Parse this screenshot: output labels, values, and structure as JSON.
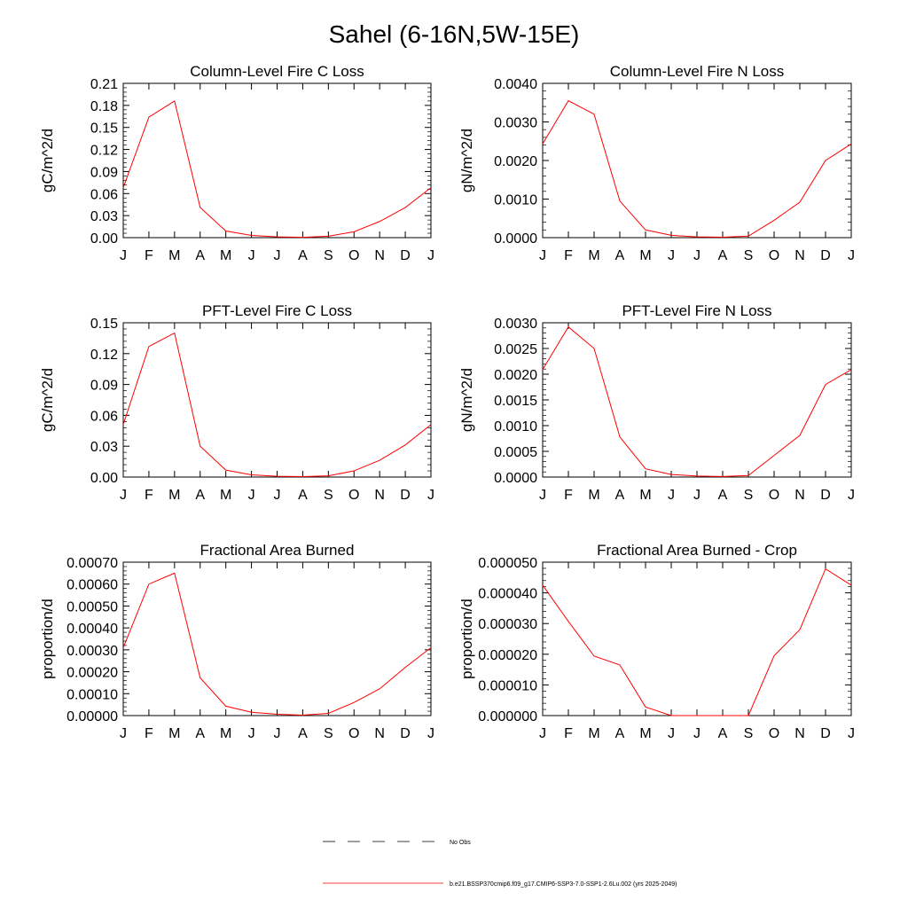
{
  "page_title": "Sahel (6-16N,5W-15E)",
  "legend": [
    {
      "label": "No Obs",
      "color": "#000000",
      "dash": "dashed"
    },
    {
      "label": "b.e21.BSSP370cmip6.f09_g17.CMIP6-SSP3-7.0-SSP1-2.6Lu.002 (yrs 2025-2049)",
      "color": "#ff0000",
      "dash": "solid"
    }
  ],
  "chart_data": [
    {
      "type": "line",
      "title": "Column-Level Fire C Loss",
      "ylabel": "gC/m^2/d",
      "categories": [
        "J",
        "F",
        "M",
        "A",
        "M",
        "J",
        "J",
        "A",
        "S",
        "O",
        "N",
        "D",
        "J"
      ],
      "ylim": [
        0,
        0.21
      ],
      "yticks": [
        "0.00",
        "0.03",
        "0.06",
        "0.09",
        "0.12",
        "0.15",
        "0.18",
        "0.21"
      ],
      "series": [
        {
          "color": "#ff0000",
          "values": [
            0.068,
            0.164,
            0.186,
            0.041,
            0.009,
            0.003,
            0.001,
            0.0005,
            0.002,
            0.008,
            0.022,
            0.041,
            0.068
          ]
        }
      ]
    },
    {
      "type": "line",
      "title": "Column-Level Fire N Loss",
      "ylabel": "gN/m^2/d",
      "categories": [
        "J",
        "F",
        "M",
        "A",
        "M",
        "J",
        "J",
        "A",
        "S",
        "O",
        "N",
        "D",
        "J"
      ],
      "ylim": [
        0,
        0.004
      ],
      "yticks": [
        "0.0000",
        "0.0010",
        "0.0020",
        "0.0030",
        "0.0040"
      ],
      "series": [
        {
          "color": "#ff0000",
          "values": [
            0.00243,
            0.00355,
            0.0032,
            0.00095,
            0.0002,
            6e-05,
            2e-05,
            1e-05,
            4e-05,
            0.00045,
            0.00092,
            0.002,
            0.00243
          ]
        }
      ]
    },
    {
      "type": "line",
      "title": "PFT-Level Fire C Loss",
      "ylabel": "gC/m^2/d",
      "categories": [
        "J",
        "F",
        "M",
        "A",
        "M",
        "J",
        "J",
        "A",
        "S",
        "O",
        "N",
        "D",
        "J"
      ],
      "ylim": [
        0,
        0.15
      ],
      "yticks": [
        "0.00",
        "0.03",
        "0.06",
        "0.09",
        "0.12",
        "0.15"
      ],
      "series": [
        {
          "color": "#ff0000",
          "values": [
            0.051,
            0.127,
            0.14,
            0.03,
            0.0068,
            0.0022,
            0.0008,
            0.0004,
            0.0012,
            0.006,
            0.0163,
            0.0312,
            0.051
          ]
        }
      ]
    },
    {
      "type": "line",
      "title": "PFT-Level Fire N Loss",
      "ylabel": "gN/m^2/d",
      "categories": [
        "J",
        "F",
        "M",
        "A",
        "M",
        "J",
        "J",
        "A",
        "S",
        "O",
        "N",
        "D",
        "J"
      ],
      "ylim": [
        0,
        0.003
      ],
      "yticks": [
        "0.0000",
        "0.0005",
        "0.0010",
        "0.0015",
        "0.0020",
        "0.0025",
        "0.0030"
      ],
      "series": [
        {
          "color": "#ff0000",
          "values": [
            0.00209,
            0.00292,
            0.0025,
            0.00078,
            0.00016,
            5e-05,
            2e-05,
            1e-05,
            3e-05,
            0.00042,
            0.00081,
            0.0018,
            0.00209
          ]
        }
      ]
    },
    {
      "type": "line",
      "title": "Fractional Area Burned",
      "ylabel": "proportion/d",
      "categories": [
        "J",
        "F",
        "M",
        "A",
        "M",
        "J",
        "J",
        "A",
        "S",
        "O",
        "N",
        "D",
        "J"
      ],
      "ylim": [
        0,
        0.0007
      ],
      "yticks": [
        "0.00000",
        "0.00010",
        "0.00020",
        "0.00030",
        "0.00040",
        "0.00050",
        "0.00060",
        "0.00070"
      ],
      "series": [
        {
          "color": "#ff0000",
          "values": [
            0.00031,
            0.0006,
            0.00065,
            0.000172,
            4.3e-05,
            1.5e-05,
            6e-06,
            2e-06,
            1e-05,
            6e-05,
            0.000122,
            0.00022,
            0.00031
          ]
        }
      ]
    },
    {
      "type": "line",
      "title": "Fractional Area Burned - Crop",
      "ylabel": "proportion/d",
      "categories": [
        "J",
        "F",
        "M",
        "A",
        "M",
        "J",
        "J",
        "A",
        "S",
        "O",
        "N",
        "D",
        "J"
      ],
      "ylim": [
        0,
        5e-05
      ],
      "yticks": [
        "0.000000",
        "0.000010",
        "0.000020",
        "0.000030",
        "0.000040",
        "0.000050"
      ],
      "series": [
        {
          "color": "#ff0000",
          "values": [
            4.25e-05,
            3.07e-05,
            1.94e-05,
            1.65e-05,
            2.8e-06,
            0,
            0,
            0,
            0,
            1.95e-05,
            2.8e-05,
            4.78e-05,
            4.25e-05
          ]
        }
      ]
    }
  ]
}
